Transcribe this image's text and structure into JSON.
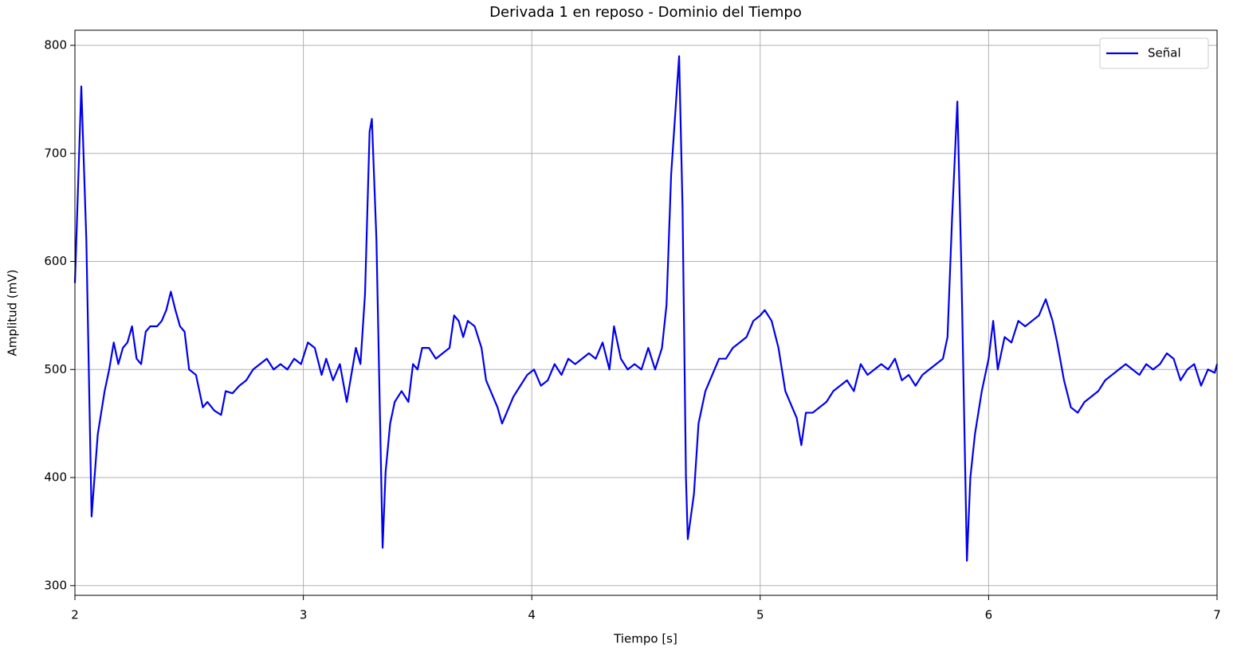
{
  "chart_data": {
    "type": "line",
    "title": "Derivada 1 en reposo - Dominio del Tiempo",
    "x_label": "Tiempo [s]",
    "y_label": "Amplitud (mV)",
    "xlim": [
      2,
      7
    ],
    "xticks": [
      2,
      3,
      4,
      5,
      6,
      7
    ],
    "ylim": [
      291,
      814
    ],
    "yticks": [
      300,
      400,
      500,
      600,
      700,
      800
    ],
    "grid": true,
    "legend": "upper right",
    "series": [
      {
        "name": "Señal",
        "color": "#0000ee",
        "x": [
          2.0,
          2.028,
          2.05,
          2.073,
          2.1,
          2.13,
          2.15,
          2.17,
          2.19,
          2.21,
          2.23,
          2.25,
          2.27,
          2.29,
          2.31,
          2.33,
          2.36,
          2.38,
          2.4,
          2.42,
          2.44,
          2.46,
          2.48,
          2.5,
          2.53,
          2.56,
          2.58,
          2.61,
          2.64,
          2.66,
          2.69,
          2.72,
          2.75,
          2.78,
          2.81,
          2.84,
          2.87,
          2.9,
          2.93,
          2.96,
          2.99,
          3.02,
          3.05,
          3.08,
          3.1,
          3.13,
          3.16,
          3.19,
          3.21,
          3.23,
          3.25,
          3.27,
          3.29,
          3.3,
          3.32,
          3.347,
          3.36,
          3.38,
          3.4,
          3.43,
          3.46,
          3.48,
          3.5,
          3.52,
          3.55,
          3.58,
          3.61,
          3.64,
          3.66,
          3.68,
          3.7,
          3.72,
          3.75,
          3.78,
          3.8,
          3.82,
          3.85,
          3.87,
          3.89,
          3.92,
          3.95,
          3.98,
          4.01,
          4.04,
          4.07,
          4.1,
          4.13,
          4.16,
          4.19,
          4.22,
          4.25,
          4.28,
          4.31,
          4.34,
          4.36,
          4.39,
          4.42,
          4.45,
          4.48,
          4.51,
          4.54,
          4.57,
          4.59,
          4.61,
          4.645,
          4.66,
          4.675,
          4.683,
          4.71,
          4.73,
          4.76,
          4.79,
          4.82,
          4.85,
          4.88,
          4.91,
          4.94,
          4.97,
          5.0,
          5.02,
          5.05,
          5.08,
          5.11,
          5.14,
          5.16,
          5.18,
          5.2,
          5.23,
          5.26,
          5.29,
          5.32,
          5.35,
          5.38,
          5.41,
          5.44,
          5.47,
          5.5,
          5.53,
          5.56,
          5.59,
          5.62,
          5.65,
          5.68,
          5.71,
          5.74,
          5.77,
          5.8,
          5.82,
          5.84,
          5.863,
          5.88,
          5.905,
          5.92,
          5.94,
          5.97,
          6.0,
          6.02,
          6.04,
          6.07,
          6.1,
          6.13,
          6.16,
          6.19,
          6.22,
          6.25,
          6.28,
          6.3,
          6.33,
          6.36,
          6.39,
          6.42,
          6.45,
          6.48,
          6.51,
          6.54,
          6.57,
          6.6,
          6.63,
          6.66,
          6.69,
          6.72,
          6.75,
          6.78,
          6.81,
          6.84,
          6.87,
          6.9,
          6.93,
          6.96,
          6.99,
          7.0
        ],
        "values": [
          580,
          762,
          620,
          364,
          440,
          480,
          500,
          525,
          505,
          520,
          525,
          540,
          510,
          505,
          535,
          540,
          540,
          545,
          555,
          572,
          555,
          540,
          535,
          500,
          495,
          465,
          470,
          462,
          458,
          480,
          478,
          485,
          490,
          500,
          505,
          510,
          500,
          505,
          500,
          510,
          505,
          525,
          520,
          495,
          510,
          490,
          505,
          470,
          495,
          520,
          505,
          570,
          720,
          732,
          620,
          335,
          405,
          450,
          470,
          480,
          470,
          505,
          500,
          520,
          520,
          510,
          515,
          520,
          550,
          545,
          530,
          545,
          540,
          520,
          490,
          480,
          465,
          450,
          460,
          475,
          485,
          495,
          500,
          485,
          490,
          505,
          495,
          510,
          505,
          510,
          515,
          510,
          525,
          500,
          540,
          510,
          500,
          505,
          500,
          520,
          500,
          520,
          560,
          680,
          790,
          650,
          400,
          343,
          385,
          450,
          480,
          495,
          510,
          510,
          520,
          525,
          530,
          545,
          550,
          555,
          545,
          520,
          480,
          465,
          455,
          430,
          460,
          460,
          465,
          470,
          480,
          485,
          490,
          480,
          505,
          495,
          500,
          505,
          500,
          510,
          490,
          495,
          485,
          495,
          500,
          505,
          510,
          530,
          640,
          748,
          600,
          323,
          400,
          440,
          480,
          510,
          545,
          500,
          530,
          525,
          545,
          540,
          545,
          550,
          565,
          545,
          525,
          490,
          465,
          460,
          470,
          475,
          480,
          490,
          495,
          500,
          505,
          500,
          495,
          505,
          500,
          505,
          515,
          510,
          490,
          500,
          505,
          485,
          500,
          497,
          505
        ]
      }
    ]
  }
}
